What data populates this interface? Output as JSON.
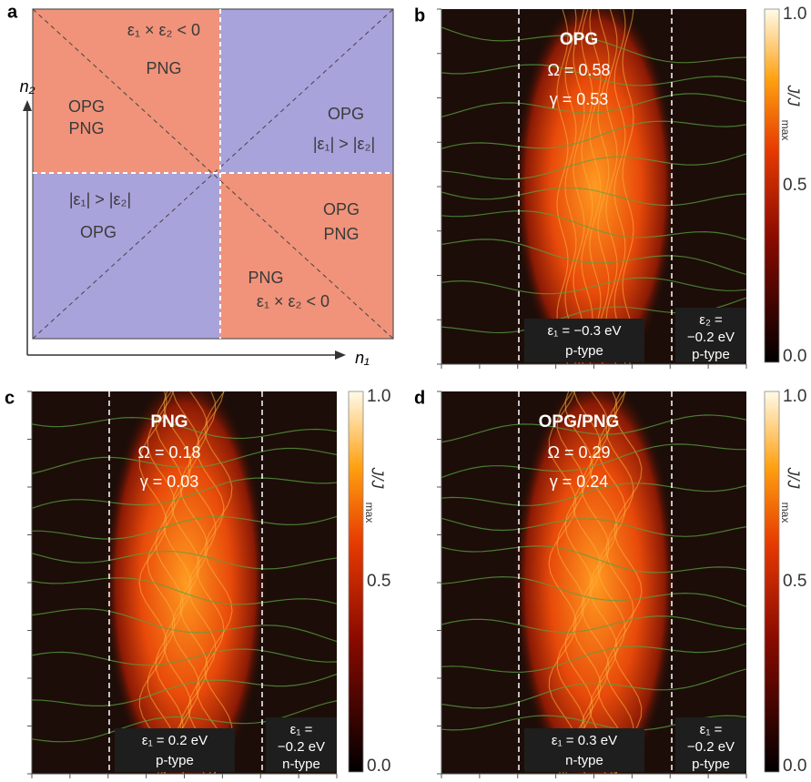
{
  "panel_a": {
    "label": "a",
    "top_left": {
      "condition": "ε₁ × ε₂ < 0",
      "png": "PNG",
      "opg": "OPG",
      "png2": "PNG"
    },
    "top_right": {
      "opg": "OPG",
      "condition": "|ε₁| > |ε₂|"
    },
    "bottom_left": {
      "condition": "|ε₁| > |ε₂|",
      "opg": "OPG"
    },
    "bottom_right": {
      "opg": "OPG",
      "png": "PNG",
      "png2": "PNG",
      "condition": "ε₁ × ε₂ < 0"
    },
    "axis_x": "n₁",
    "axis_y": "n₂"
  },
  "panels": [
    {
      "label": "b",
      "title": "OPG",
      "omega": "Ω = 0.58",
      "gamma": "γ = 0.53",
      "left_box": [
        "ε₁ = −0.3 eV",
        "p-type"
      ],
      "right_box": [
        "ε₂ =",
        "−0.2 eV",
        "p-type"
      ],
      "colorbar_ticks": [
        "1.0",
        "0.5",
        "0.0"
      ],
      "colorbar_label": "J/J",
      "colorbar_label_sub": "max"
    },
    {
      "label": "c",
      "title": "PNG",
      "omega": "Ω = 0.18",
      "gamma": "γ = 0.03",
      "left_box": [
        "ε₁ = 0.2 eV",
        "p-type"
      ],
      "right_box": [
        "ε₁ =",
        "−0.2 eV",
        "n-type"
      ],
      "colorbar_ticks": [
        "1.0",
        "0.5",
        "0.0"
      ],
      "colorbar_label": "J/J",
      "colorbar_label_sub": "max"
    },
    {
      "label": "d",
      "title": "OPG/PNG",
      "omega": "Ω = 0.29",
      "gamma": "γ = 0.24",
      "left_box": [
        "ε₁ = 0.3 eV",
        "n-type"
      ],
      "right_box": [
        "ε₁ =",
        "−0.2 eV",
        "p-type"
      ],
      "colorbar_ticks": [
        "1.0",
        "0.5",
        "0.0"
      ],
      "colorbar_label": "J/J",
      "colorbar_label_sub": "max"
    }
  ]
}
